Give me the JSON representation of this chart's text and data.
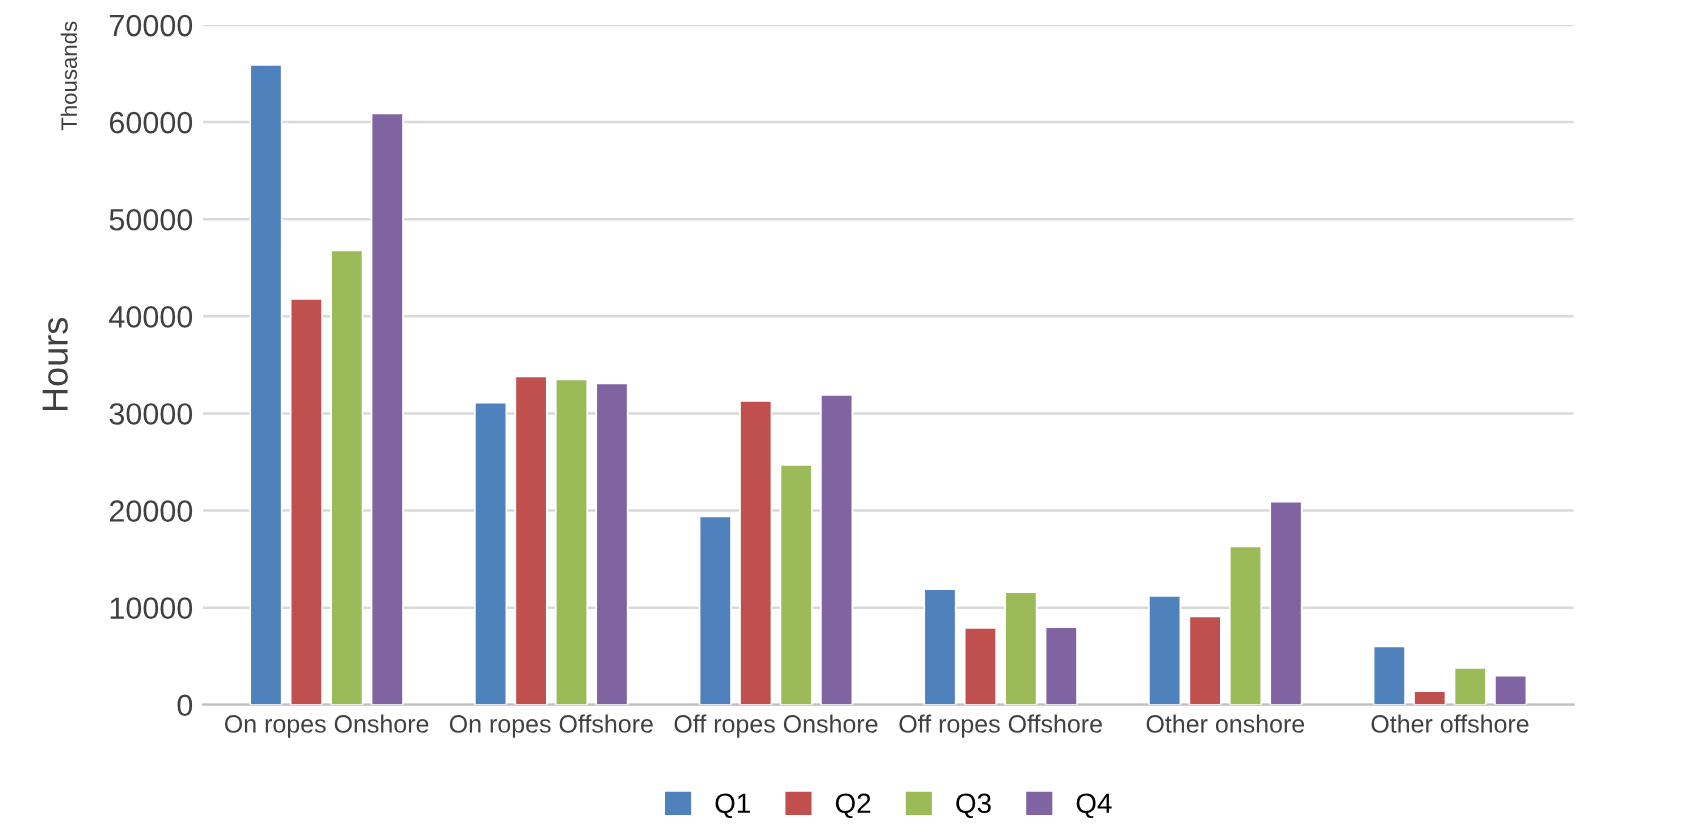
{
  "chart_data": {
    "type": "bar",
    "ylabel": "Hours",
    "annotations": [
      "Thousands"
    ],
    "categories": [
      "On ropes Onshore",
      "On ropes Offshore",
      "Off ropes Onshore",
      "Off ropes Offshore",
      "Other onshore",
      "Other offshore"
    ],
    "series": [
      {
        "name": "Q1",
        "color": "#4f81bd",
        "values": [
          65900,
          31100,
          19400,
          11900,
          11200,
          6000
        ]
      },
      {
        "name": "Q2",
        "color": "#c0504d",
        "values": [
          41800,
          33800,
          31300,
          7900,
          9100,
          1400
        ]
      },
      {
        "name": "Q3",
        "color": "#9bbb59",
        "values": [
          46800,
          33500,
          24700,
          11600,
          16300,
          3800
        ]
      },
      {
        "name": "Q4",
        "color": "#8064a2",
        "values": [
          60900,
          33100,
          31900,
          8000,
          20900,
          3000
        ]
      }
    ],
    "ylim": [
      0,
      70000
    ],
    "yticks": [
      0,
      10000,
      20000,
      30000,
      40000,
      50000,
      60000,
      70000
    ],
    "grid": "y",
    "legend": "bottom"
  }
}
